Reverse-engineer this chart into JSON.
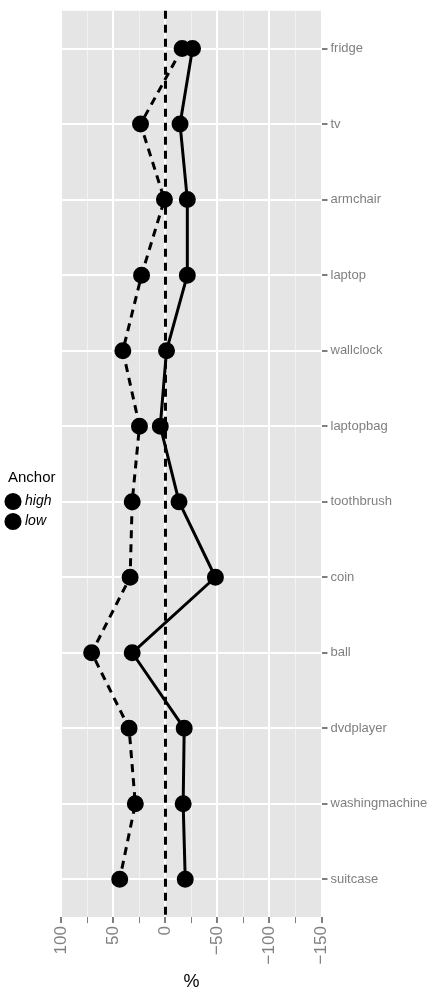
{
  "chart_data": {
    "type": "line",
    "orientation": "horizontal",
    "xlabel": "%",
    "legend_title": "Anchor",
    "legend": "left",
    "marker": "circle",
    "grid": true,
    "categories": [
      "fridge",
      "tv",
      "armchair",
      "laptop",
      "wallclock",
      "laptopbag",
      "toothbrush",
      "coin",
      "ball",
      "dvdplayer",
      "washingmachine",
      "suitcase"
    ],
    "series": [
      {
        "name": "high",
        "color": "#000000",
        "line_style": "solid",
        "values": [
          -26,
          -14,
          -21,
          -21,
          -1,
          5,
          -13,
          -48,
          32,
          -18,
          -17,
          -19
        ]
      },
      {
        "name": "low",
        "color": "#000000",
        "line_style": "dashed",
        "values": [
          -16,
          24,
          1,
          23,
          41,
          25,
          32,
          34,
          71,
          35,
          29,
          44
        ]
      }
    ],
    "xlim": [
      100,
      -150
    ],
    "xticks": [
      100,
      {
        "value": 75,
        "label": null
      },
      50,
      {
        "value": 25,
        "label": null
      },
      0,
      {
        "value": -25,
        "label": null
      },
      {
        "value": -50,
        "label": "−50"
      },
      {
        "value": -75,
        "label": null
      },
      {
        "value": -100,
        "label": "−100"
      },
      {
        "value": -125,
        "label": null
      },
      {
        "value": -150,
        "label": "−150"
      }
    ],
    "ref_lines": [
      {
        "axis": "x",
        "value": 0,
        "color": "#000000",
        "line_style": "dashed"
      }
    ]
  }
}
